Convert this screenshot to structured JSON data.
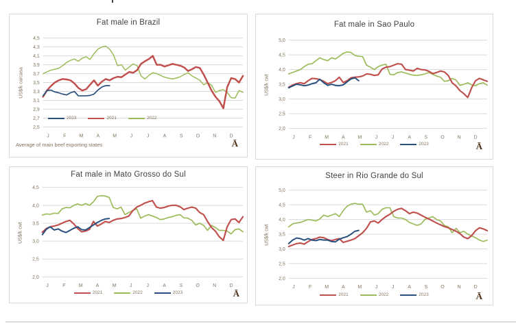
{
  "colors": {
    "red": "#c0504d",
    "green": "#9bbb59",
    "blue": "#274f7d",
    "grid": "#d9d9d9",
    "axis_text": "#83735e",
    "title_text": "#3f3f3f",
    "watermark": "#4b2d14",
    "panel_border": "#d9d9d9"
  },
  "chart_data": [
    {
      "type": "line",
      "title": "Fat male in Brazil",
      "ylabel": "US$/k carcasa",
      "x_labels": [
        "J",
        "F",
        "M",
        "A",
        "M",
        "J",
        "J",
        "A",
        "S",
        "O",
        "N",
        "D"
      ],
      "y_ticks": [
        "4,5",
        "4,3",
        "4,1",
        "3,9",
        "3,7",
        "3,5",
        "3,3",
        "3,1",
        "2,9",
        "2,7",
        "2,5"
      ],
      "ylim": [
        2.5,
        4.5
      ],
      "weeks": 52,
      "grid": true,
      "legend_position": "inside-bottom-left",
      "legend": [
        {
          "label": "2023",
          "color": "blue"
        },
        {
          "label": "2021",
          "color": "red"
        },
        {
          "label": "2022",
          "color": "green"
        }
      ],
      "footnote": "Average  of main beef exporting states",
      "watermark": "Ā",
      "series": [
        {
          "name": "2022",
          "color": "green",
          "width": 1.5,
          "values": [
            3.7,
            3.74,
            3.78,
            3.8,
            3.82,
            3.88,
            3.95,
            4.0,
            4.03,
            3.98,
            4.05,
            4.08,
            4.02,
            4.15,
            4.25,
            4.3,
            4.32,
            4.25,
            4.12,
            3.88,
            3.9,
            3.78,
            3.85,
            3.92,
            3.88,
            3.65,
            3.58,
            3.66,
            3.72,
            3.7,
            3.66,
            3.62,
            3.6,
            3.58,
            3.6,
            3.63,
            3.68,
            3.72,
            3.65,
            3.6,
            3.55,
            3.45,
            3.5,
            3.44,
            3.28,
            3.32,
            3.34,
            3.28,
            3.16,
            3.15,
            3.32,
            3.28
          ]
        },
        {
          "name": "2021",
          "color": "red",
          "width": 2.5,
          "values": [
            3.18,
            3.32,
            3.42,
            3.5,
            3.55,
            3.58,
            3.57,
            3.55,
            3.48,
            3.38,
            3.32,
            3.35,
            3.45,
            3.55,
            3.43,
            3.52,
            3.58,
            3.55,
            3.6,
            3.63,
            3.62,
            3.68,
            3.74,
            3.72,
            3.78,
            3.92,
            3.98,
            4.03,
            4.1,
            3.9,
            3.9,
            3.86,
            3.89,
            3.92,
            3.9,
            3.88,
            3.84,
            3.76,
            3.8,
            3.85,
            3.83,
            3.68,
            3.5,
            3.32,
            3.18,
            3.08,
            2.92,
            3.4,
            3.6,
            3.58,
            3.5,
            3.65
          ]
        },
        {
          "name": "2023",
          "color": "blue",
          "width": 1.7,
          "values": [
            3.2,
            3.32,
            3.33,
            3.29,
            3.27,
            3.24,
            3.22,
            3.27,
            3.3,
            3.2,
            3.2,
            3.2,
            3.21,
            3.24,
            3.33,
            3.4,
            3.43,
            3.43
          ]
        }
      ]
    },
    {
      "type": "line",
      "title": "Fat male in Sao Paulo",
      "ylabel": "US$/k cwt",
      "x_labels": [
        "J",
        "F",
        "M",
        "A",
        "M",
        "J",
        "J",
        "A",
        "S",
        "O",
        "N",
        "D"
      ],
      "y_ticks": [
        "5,0",
        "4,5",
        "4,0",
        "3,5",
        "3,0",
        "2,5",
        "2,0"
      ],
      "ylim": [
        2.0,
        5.0
      ],
      "weeks": 52,
      "grid": true,
      "legend_position": "below-center",
      "legend": [
        {
          "label": "2021",
          "color": "red"
        },
        {
          "label": "2022",
          "color": "green"
        },
        {
          "label": "2023",
          "color": "blue"
        }
      ],
      "watermark": "Ā",
      "series": [
        {
          "name": "2022",
          "color": "green",
          "width": 1.7,
          "values": [
            3.85,
            3.9,
            3.95,
            4.0,
            4.1,
            4.18,
            4.2,
            4.3,
            4.4,
            4.34,
            4.3,
            4.4,
            4.36,
            4.45,
            4.55,
            4.6,
            4.58,
            4.48,
            4.45,
            4.44,
            4.15,
            4.08,
            4.0,
            4.1,
            4.15,
            4.18,
            3.84,
            3.82,
            3.9,
            3.92,
            3.88,
            3.84,
            3.81,
            3.8,
            3.82,
            3.85,
            3.9,
            3.84,
            3.78,
            3.74,
            3.6,
            3.62,
            3.7,
            3.64,
            3.46,
            3.5,
            3.55,
            3.48,
            3.45,
            3.52,
            3.55,
            3.47
          ]
        },
        {
          "name": "2021",
          "color": "red",
          "width": 2.2,
          "values": [
            3.4,
            3.47,
            3.52,
            3.55,
            3.52,
            3.62,
            3.7,
            3.69,
            3.66,
            3.6,
            3.52,
            3.56,
            3.62,
            3.74,
            3.56,
            3.62,
            3.72,
            3.74,
            3.75,
            3.78,
            3.85,
            3.84,
            3.8,
            3.82,
            4.02,
            4.08,
            4.1,
            4.15,
            4.2,
            4.18,
            4.0,
            3.98,
            3.95,
            4.04,
            4.0,
            3.99,
            3.94,
            3.86,
            3.9,
            3.95,
            3.92,
            3.8,
            3.55,
            3.44,
            3.28,
            3.18,
            3.05,
            3.38,
            3.62,
            3.7,
            3.65,
            3.6
          ]
        },
        {
          "name": "2023",
          "color": "blue",
          "width": 2.0,
          "values": [
            3.38,
            3.44,
            3.5,
            3.48,
            3.45,
            3.47,
            3.52,
            3.55,
            3.67,
            3.55,
            3.46,
            3.5,
            3.46,
            3.45,
            3.48,
            3.58,
            3.68,
            3.72,
            3.62
          ]
        }
      ]
    },
    {
      "type": "line",
      "title": "Fat male in Mato Grosso do Sul",
      "ylabel": "US$/k cwt",
      "x_labels": [
        "J",
        "F",
        "M",
        "A",
        "M",
        "J",
        "J",
        "A",
        "S",
        "O",
        "N",
        "D"
      ],
      "y_ticks": [
        "4,5",
        "4,0",
        "3,5",
        "3,0",
        "2,5",
        "2,0"
      ],
      "ylim": [
        2.0,
        4.5
      ],
      "weeks": 52,
      "grid": true,
      "legend_position": "below-center",
      "legend": [
        {
          "label": "2021",
          "color": "red"
        },
        {
          "label": "2022",
          "color": "green"
        },
        {
          "label": "2023",
          "color": "blue"
        }
      ],
      "watermark": "Ā",
      "series": [
        {
          "name": "2022",
          "color": "green",
          "width": 1.7,
          "values": [
            3.73,
            3.76,
            3.75,
            3.78,
            3.77,
            3.9,
            3.94,
            3.93,
            4.0,
            4.04,
            4.0,
            4.05,
            4.0,
            4.1,
            4.25,
            4.27,
            4.26,
            4.22,
            3.94,
            3.9,
            3.95,
            3.74,
            3.8,
            3.86,
            3.9,
            3.64,
            3.7,
            3.74,
            3.7,
            3.66,
            3.6,
            3.62,
            3.66,
            3.68,
            3.72,
            3.74,
            3.65,
            3.64,
            3.58,
            3.45,
            3.5,
            3.44,
            3.3,
            3.44,
            3.38,
            3.3,
            3.3,
            3.28,
            3.2,
            3.32,
            3.34,
            3.26
          ]
        },
        {
          "name": "2021",
          "color": "red",
          "width": 2.2,
          "values": [
            3.25,
            3.35,
            3.4,
            3.42,
            3.45,
            3.5,
            3.55,
            3.58,
            3.48,
            3.35,
            3.26,
            3.28,
            3.33,
            3.55,
            3.42,
            3.48,
            3.55,
            3.52,
            3.58,
            3.62,
            3.63,
            3.66,
            3.7,
            3.85,
            3.95,
            4.0,
            4.06,
            4.1,
            4.13,
            3.95,
            3.92,
            3.94,
            3.98,
            4.0,
            4.0,
            3.96,
            3.88,
            3.92,
            3.95,
            3.92,
            3.8,
            3.74,
            3.55,
            3.38,
            3.28,
            3.12,
            3.02,
            3.4,
            3.6,
            3.62,
            3.52,
            3.68
          ]
        },
        {
          "name": "2023",
          "color": "blue",
          "width": 2.0,
          "values": [
            3.18,
            3.33,
            3.4,
            3.31,
            3.34,
            3.28,
            3.24,
            3.3,
            3.36,
            3.4,
            3.32,
            3.31,
            3.38,
            3.45,
            3.52,
            3.58,
            3.62,
            3.63
          ]
        }
      ]
    },
    {
      "type": "line",
      "title": "Steer  in Rio Grande do Sul",
      "ylabel": "US$/k cwt",
      "x_labels": [
        "J",
        "F",
        "M",
        "A",
        "M",
        "J",
        "J",
        "A",
        "S",
        "O",
        "N",
        "D"
      ],
      "y_ticks": [
        "5,0",
        "4,5",
        "4,0",
        "3,5",
        "3,0",
        "2,5",
        "2,0"
      ],
      "ylim": [
        2.0,
        5.0
      ],
      "weeks": 52,
      "grid": true,
      "legend_position": "below-center",
      "legend": [
        {
          "label": "2021",
          "color": "red"
        },
        {
          "label": "2022",
          "color": "green"
        },
        {
          "label": "2023",
          "color": "blue"
        }
      ],
      "watermark": "Ā",
      "series": [
        {
          "name": "2022",
          "color": "green",
          "width": 1.7,
          "values": [
            3.75,
            3.85,
            3.88,
            3.9,
            3.95,
            4.0,
            3.98,
            3.95,
            4.02,
            4.15,
            4.1,
            4.15,
            4.2,
            4.1,
            4.3,
            4.45,
            4.52,
            4.55,
            4.52,
            4.52,
            4.25,
            4.3,
            4.15,
            4.2,
            4.35,
            4.4,
            4.4,
            4.1,
            4.05,
            4.05,
            4.0,
            3.9,
            3.85,
            3.8,
            3.85,
            4.0,
            4.05,
            4.1,
            4.0,
            3.95,
            3.8,
            3.75,
            3.55,
            3.7,
            3.55,
            3.6,
            3.5,
            3.44,
            3.38,
            3.3,
            3.25,
            3.3
          ]
        },
        {
          "name": "2021",
          "color": "red",
          "width": 2.2,
          "values": [
            3.08,
            3.13,
            3.18,
            3.2,
            3.16,
            3.25,
            3.32,
            3.35,
            3.4,
            3.38,
            3.32,
            3.28,
            3.32,
            3.35,
            3.22,
            3.26,
            3.3,
            3.35,
            3.45,
            3.55,
            3.7,
            3.92,
            3.95,
            3.88,
            4.0,
            4.1,
            4.18,
            4.28,
            4.35,
            4.38,
            4.3,
            4.2,
            4.25,
            4.22,
            4.15,
            4.08,
            4.02,
            3.95,
            3.88,
            3.82,
            3.76,
            3.72,
            3.66,
            3.6,
            3.52,
            3.4,
            3.35,
            3.45,
            3.62,
            3.72,
            3.68,
            3.62
          ]
        },
        {
          "name": "2023",
          "color": "blue",
          "width": 2.0,
          "values": [
            3.18,
            3.3,
            3.37,
            3.35,
            3.3,
            3.35,
            3.3,
            3.28,
            3.32,
            3.3,
            3.3,
            3.25,
            3.24,
            3.33,
            3.38,
            3.42,
            3.5,
            3.6,
            3.63
          ]
        }
      ]
    }
  ]
}
